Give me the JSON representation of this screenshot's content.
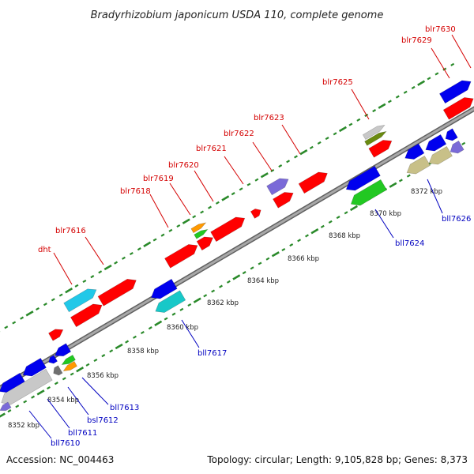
{
  "title": "Bradyrhizobium japonicum USDA 110, complete genome",
  "footer": {
    "accession": "Accession: NC_004463",
    "stats": "Topology: circular; Length: 9,105,828 bp; Genes: 8,373"
  },
  "colors": {
    "backbone": "#808080",
    "tick": "#2a8a2a",
    "label_forward": "#d40000",
    "label_reverse": "#0000c0",
    "red": "#ff0000",
    "blue": "#0000ee",
    "cyan": "#22c8e8",
    "grey": "#c8c8c8",
    "purple": "#7a6ad8",
    "olive": "#6a8a10",
    "orange": "#ff9900",
    "green": "#22c822",
    "khaki": "#c8c088",
    "teal": "#18c8c8",
    "darkgrey": "#707070"
  },
  "axis_labels": [
    "8352 kbp",
    "8354 kbp",
    "8356 kbp",
    "8358 kbp",
    "8360 kbp",
    "8362 kbp",
    "8364 kbp",
    "8366 kbp",
    "8368 kbp",
    "8370 kbp",
    "8372 kbp"
  ],
  "forward_labels": [
    "dht",
    "blr7616",
    "blr7618",
    "blr7619",
    "blr7620",
    "blr7621",
    "blr7622",
    "blr7623",
    "blr7625",
    "blr7629",
    "blr7630"
  ],
  "reverse_labels": [
    "bll7610",
    "bll7611",
    "bsl7612",
    "bll7613",
    "bll7617",
    "bll7624",
    "bll7626"
  ]
}
